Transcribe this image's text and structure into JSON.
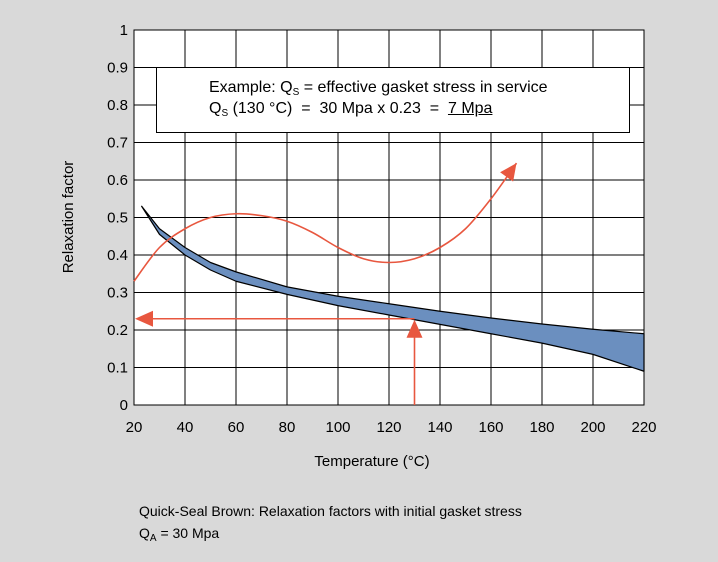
{
  "chart_data": {
    "type": "line",
    "title": "",
    "xlabel": "Temperature (°C)",
    "ylabel": "Relaxation factor",
    "xlim": [
      20,
      220
    ],
    "ylim": [
      0,
      1
    ],
    "x_ticks": [
      20,
      40,
      60,
      80,
      100,
      120,
      140,
      160,
      180,
      200,
      220
    ],
    "y_ticks": [
      0,
      0.1,
      0.2,
      0.3,
      0.4,
      0.5,
      0.6,
      0.7,
      0.8,
      0.9,
      1
    ],
    "y_tick_labels": [
      "0",
      "0.1",
      "0.2",
      "0.3",
      "0.4",
      "0.5",
      "0.6",
      "0.7",
      "0.8",
      "0.9",
      "1"
    ],
    "grid": true,
    "band": {
      "upper": [
        [
          23,
          0.53
        ],
        [
          30,
          0.47
        ],
        [
          40,
          0.42
        ],
        [
          50,
          0.38
        ],
        [
          60,
          0.355
        ],
        [
          80,
          0.315
        ],
        [
          100,
          0.29
        ],
        [
          120,
          0.27
        ],
        [
          140,
          0.25
        ],
        [
          160,
          0.232
        ],
        [
          180,
          0.216
        ],
        [
          200,
          0.202
        ],
        [
          220,
          0.19
        ]
      ],
      "lower": [
        [
          23,
          0.53
        ],
        [
          30,
          0.455
        ],
        [
          40,
          0.4
        ],
        [
          50,
          0.36
        ],
        [
          60,
          0.33
        ],
        [
          80,
          0.295
        ],
        [
          100,
          0.265
        ],
        [
          120,
          0.24
        ],
        [
          140,
          0.215
        ],
        [
          160,
          0.19
        ],
        [
          180,
          0.165
        ],
        [
          200,
          0.135
        ],
        [
          220,
          0.09
        ]
      ],
      "fill": "#6b8fbf"
    },
    "trend_arrow": {
      "points": [
        [
          20,
          0.33
        ],
        [
          30,
          0.42
        ],
        [
          40,
          0.47
        ],
        [
          50,
          0.5
        ],
        [
          60,
          0.51
        ],
        [
          70,
          0.505
        ],
        [
          80,
          0.49
        ],
        [
          90,
          0.46
        ],
        [
          100,
          0.42
        ],
        [
          110,
          0.39
        ],
        [
          120,
          0.38
        ],
        [
          130,
          0.39
        ],
        [
          140,
          0.42
        ],
        [
          150,
          0.47
        ],
        [
          160,
          0.55
        ],
        [
          170,
          0.645
        ]
      ],
      "color": "#e8573f"
    },
    "reading_lines": {
      "x": 130,
      "y": 0.23,
      "color": "#e8573f"
    },
    "example_box": {
      "line1_prefix": "Example: Q",
      "line1_sub": "S",
      "line1_suffix": " = effective gasket stress in service",
      "line2_prefix": "Q",
      "line2_sub": "S",
      "line2_mid": " (130 °C)  =  30 Mpa x 0.23  =  ",
      "line2_result": "7 Mpa"
    }
  },
  "caption": {
    "line1": "Quick-Seal Brown: Relaxation factors with initial gasket stress",
    "line2_prefix": "Q",
    "line2_sub": "A",
    "line2_suffix": " = 30 Mpa"
  },
  "colors": {
    "background": "#d9d9d9",
    "plot_background": "#ffffff",
    "band": "#6b8fbf",
    "accent": "#e8573f"
  }
}
